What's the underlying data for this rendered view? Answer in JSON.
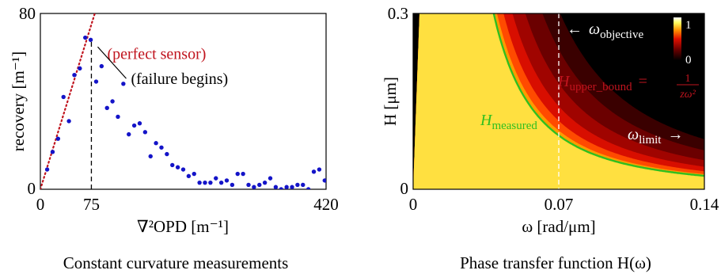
{
  "chart_data": [
    {
      "type": "scatter",
      "xlabel": "∇²OPD [m⁻¹]",
      "ylabel": "recovery [m⁻¹]",
      "caption": "Constant curvature measurements",
      "xlim": [
        0,
        420
      ],
      "ylim": [
        0,
        80
      ],
      "xticks": [
        "0",
        "75",
        "420"
      ],
      "yticks": [
        "0",
        "80"
      ],
      "reference_line": {
        "name": "(perfect sensor)",
        "slope": 1,
        "style": "dotted",
        "color": "#c0141e"
      },
      "failure_line": {
        "x": 75,
        "label": "(failure begins)"
      },
      "series": [
        {
          "color": "#1414c8",
          "x": [
            10,
            18,
            26,
            34,
            42,
            50,
            58,
            66,
            74,
            82,
            90,
            98,
            106,
            114,
            122,
            130,
            138,
            146,
            154,
            162,
            170,
            178,
            186,
            194,
            202,
            210,
            218,
            226,
            234,
            242,
            250,
            258,
            266,
            274,
            282,
            290,
            298,
            306,
            314,
            322,
            330,
            338,
            346,
            354,
            362,
            370,
            378,
            386,
            394,
            402,
            410,
            418
          ],
          "y": [
            9,
            17,
            23,
            42,
            31,
            52,
            55,
            69,
            68,
            49,
            56,
            37,
            40,
            33,
            48,
            25,
            29,
            30,
            26,
            15,
            21,
            19,
            16,
            11,
            10,
            9,
            6,
            7,
            3,
            3,
            3,
            5,
            3,
            4,
            2,
            7,
            7,
            2,
            1,
            2,
            3,
            5,
            1,
            0,
            1,
            1,
            2,
            2,
            0,
            8,
            9,
            4
          ]
        }
      ]
    },
    {
      "type": "heatmap",
      "xlabel": "ω [rad/μm]",
      "ylabel": "H [μm]",
      "caption": "Phase transfer function H(ω)",
      "xlim": [
        0,
        0.14
      ],
      "ylim": [
        0,
        0.3
      ],
      "xticks": [
        "0",
        "0.07",
        "0.14"
      ],
      "yticks": [
        "0",
        "0.3"
      ],
      "colorbar": {
        "ticks": [
          "1",
          "0"
        ],
        "colors": [
          "#000000",
          "#6b0000",
          "#e01000",
          "#ff9000",
          "#ffff60",
          "#ffffff"
        ]
      },
      "objective_line": {
        "x": 0.07,
        "label_prefix": "←",
        "label_main": "ω",
        "label_sub": "objective"
      },
      "limit_label": {
        "main": "ω",
        "sub": "limit",
        "suffix": "→"
      },
      "measured_curve": {
        "main": "H",
        "sub": "measured",
        "color": "#2fbf1f",
        "k": 0.00045
      },
      "upper_bound_curve": {
        "main": "H",
        "sub": "upper_bound",
        "eq": "=",
        "num": "1",
        "den": "zω²",
        "color": "#d01818",
        "k": 0.0105
      }
    }
  ]
}
